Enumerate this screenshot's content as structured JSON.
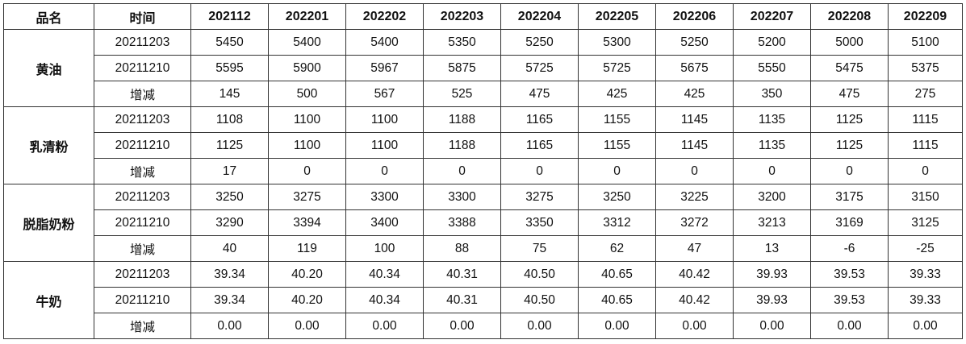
{
  "header": {
    "product_label": "品名",
    "date_label": "时间",
    "months": [
      "202112",
      "202201",
      "202202",
      "202203",
      "202204",
      "202205",
      "202206",
      "202207",
      "202208",
      "202209"
    ]
  },
  "groups": [
    {
      "name": "黄油",
      "rows": [
        {
          "label": "20211203",
          "values": [
            "5450",
            "5400",
            "5400",
            "5350",
            "5250",
            "5300",
            "5250",
            "5200",
            "5000",
            "5100"
          ]
        },
        {
          "label": "20211210",
          "values": [
            "5595",
            "5900",
            "5967",
            "5875",
            "5725",
            "5725",
            "5675",
            "5550",
            "5475",
            "5375"
          ]
        },
        {
          "label": "增减",
          "values": [
            "145",
            "500",
            "567",
            "525",
            "475",
            "425",
            "425",
            "350",
            "475",
            "275"
          ]
        }
      ]
    },
    {
      "name": "乳清粉",
      "rows": [
        {
          "label": "20211203",
          "values": [
            "1108",
            "1100",
            "1100",
            "1188",
            "1165",
            "1155",
            "1145",
            "1135",
            "1125",
            "1115"
          ]
        },
        {
          "label": "20211210",
          "values": [
            "1125",
            "1100",
            "1100",
            "1188",
            "1165",
            "1155",
            "1145",
            "1135",
            "1125",
            "1115"
          ]
        },
        {
          "label": "增减",
          "values": [
            "17",
            "0",
            "0",
            "0",
            "0",
            "0",
            "0",
            "0",
            "0",
            "0"
          ]
        }
      ]
    },
    {
      "name": "脱脂奶粉",
      "rows": [
        {
          "label": "20211203",
          "values": [
            "3250",
            "3275",
            "3300",
            "3300",
            "3275",
            "3250",
            "3225",
            "3200",
            "3175",
            "3150"
          ]
        },
        {
          "label": "20211210",
          "values": [
            "3290",
            "3394",
            "3400",
            "3388",
            "3350",
            "3312",
            "3272",
            "3213",
            "3169",
            "3125"
          ]
        },
        {
          "label": "增减",
          "values": [
            "40",
            "119",
            "100",
            "88",
            "75",
            "62",
            "47",
            "13",
            "-6",
            "-25"
          ]
        }
      ]
    },
    {
      "name": "牛奶",
      "rows": [
        {
          "label": "20211203",
          "values": [
            "39.34",
            "40.20",
            "40.34",
            "40.31",
            "40.50",
            "40.65",
            "40.42",
            "39.93",
            "39.53",
            "39.33"
          ]
        },
        {
          "label": "20211210",
          "values": [
            "39.34",
            "40.20",
            "40.34",
            "40.31",
            "40.50",
            "40.65",
            "40.42",
            "39.93",
            "39.53",
            "39.33"
          ]
        },
        {
          "label": "增减",
          "values": [
            "0.00",
            "0.00",
            "0.00",
            "0.00",
            "0.00",
            "0.00",
            "0.00",
            "0.00",
            "0.00",
            "0.00"
          ]
        }
      ]
    }
  ]
}
